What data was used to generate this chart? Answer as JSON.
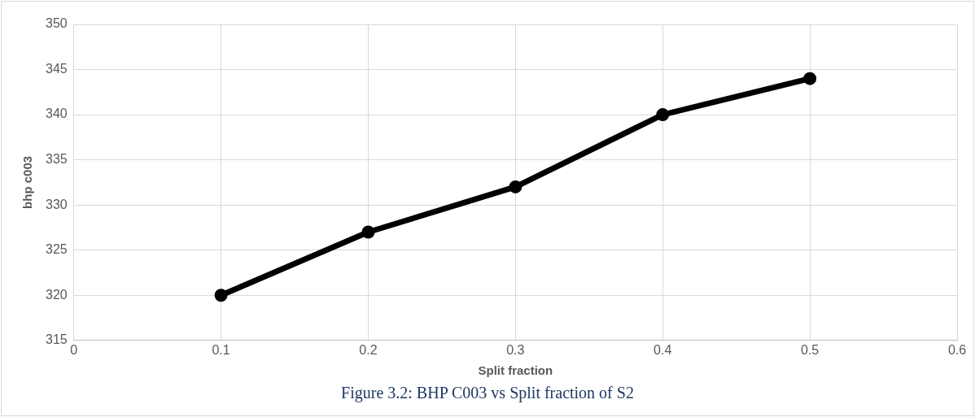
{
  "chart_data": {
    "type": "line",
    "xlabel": "Split fraction",
    "ylabel": "bhp c003",
    "x": [
      0.1,
      0.2,
      0.3,
      0.4,
      0.5
    ],
    "series": [
      {
        "color": "#000000",
        "values": [
          320,
          327,
          332,
          340,
          344
        ]
      }
    ],
    "xlim": [
      0,
      0.6
    ],
    "xticks": [
      0,
      0.1,
      0.2,
      0.3,
      0.4,
      0.5,
      0.6
    ],
    "ylim": [
      315,
      350
    ],
    "yticks": [
      315,
      320,
      325,
      330,
      335,
      340,
      345,
      350
    ],
    "grid": true,
    "legend": false,
    "marker": "circle",
    "line_style": "solid",
    "annotations": [
      "Figure 3.2: BHP C003 vs Split fraction of S2"
    ]
  }
}
